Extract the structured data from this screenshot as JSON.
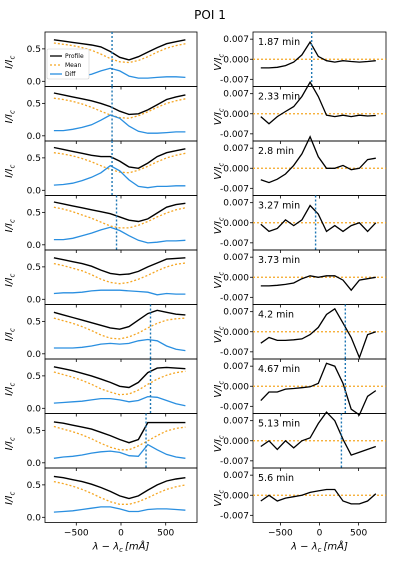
{
  "title": "POI 1",
  "colors": {
    "profile": "#000000",
    "mean": "#f5a623",
    "diff": "#2a8fe0",
    "vline": "#1f77b4"
  },
  "chart_data": [
    {
      "type": "line",
      "column": "left",
      "ylabel": "I/I_c",
      "ylabel_main": "I/I",
      "ylabel_sub": "c",
      "xlabel": "λ − λ_c [mÅ]",
      "xlabel_main": "λ − λ",
      "xlabel_sub": "c",
      "xlabel_unit": "[mÅ]",
      "xlim": [
        -850,
        850
      ],
      "ylim": [
        -0.08,
        0.76
      ],
      "xticks": [
        -500,
        0,
        500
      ],
      "xtick_labels": [
        "−500",
        "0",
        "500"
      ],
      "yticks": [
        0.0,
        0.5
      ],
      "ytick_labels": [
        "0.0",
        "0.5"
      ],
      "legend": {
        "placement": "upper-left (first panel)",
        "entries": [
          "Profile",
          "Mean",
          "Diff"
        ]
      },
      "x": [
        -750,
        -645,
        -540,
        -435,
        -330,
        -225,
        -120,
        -15,
        90,
        195,
        300,
        405,
        510,
        615,
        720
      ],
      "panels": [
        {
          "vline": -100,
          "profile": [
            0.64,
            0.62,
            0.6,
            0.58,
            0.56,
            0.53,
            0.46,
            0.37,
            0.33,
            0.38,
            0.45,
            0.52,
            0.58,
            0.61,
            0.64
          ],
          "mean": [
            0.59,
            0.57,
            0.55,
            0.52,
            0.48,
            0.42,
            0.35,
            0.3,
            0.29,
            0.32,
            0.38,
            0.45,
            0.51,
            0.55,
            0.58
          ],
          "diff": [
            0.05,
            0.05,
            0.06,
            0.08,
            0.11,
            0.16,
            0.2,
            0.16,
            0.08,
            0.05,
            0.05,
            0.06,
            0.07,
            0.07,
            0.06
          ]
        },
        {
          "vline": -100,
          "profile": [
            0.66,
            0.63,
            0.6,
            0.57,
            0.54,
            0.5,
            0.45,
            0.38,
            0.33,
            0.34,
            0.4,
            0.48,
            0.56,
            0.6,
            0.63
          ],
          "mean": [
            0.58,
            0.56,
            0.53,
            0.49,
            0.44,
            0.38,
            0.32,
            0.28,
            0.27,
            0.31,
            0.37,
            0.44,
            0.5,
            0.54,
            0.57
          ],
          "diff": [
            0.08,
            0.08,
            0.1,
            0.13,
            0.17,
            0.24,
            0.32,
            0.27,
            0.15,
            0.07,
            0.04,
            0.04,
            0.05,
            0.06,
            0.06
          ]
        },
        {
          "vline": -100,
          "profile": [
            0.66,
            0.63,
            0.6,
            0.57,
            0.54,
            0.52,
            0.52,
            0.45,
            0.36,
            0.34,
            0.42,
            0.52,
            0.58,
            0.61,
            0.64
          ],
          "mean": [
            0.58,
            0.56,
            0.53,
            0.49,
            0.44,
            0.38,
            0.32,
            0.28,
            0.27,
            0.31,
            0.37,
            0.44,
            0.5,
            0.54,
            0.57
          ],
          "diff": [
            0.08,
            0.09,
            0.11,
            0.15,
            0.2,
            0.27,
            0.38,
            0.3,
            0.16,
            0.06,
            0.04,
            0.06,
            0.06,
            0.07,
            0.07
          ]
        },
        {
          "vline": -50,
          "profile": [
            0.66,
            0.63,
            0.6,
            0.57,
            0.54,
            0.51,
            0.48,
            0.43,
            0.38,
            0.36,
            0.4,
            0.49,
            0.58,
            0.62,
            0.64
          ],
          "mean": [
            0.58,
            0.55,
            0.51,
            0.46,
            0.41,
            0.35,
            0.29,
            0.26,
            0.26,
            0.3,
            0.36,
            0.43,
            0.49,
            0.54,
            0.57
          ],
          "diff": [
            0.08,
            0.08,
            0.1,
            0.14,
            0.18,
            0.23,
            0.27,
            0.22,
            0.14,
            0.07,
            0.03,
            0.04,
            0.06,
            0.06,
            0.07
          ]
        },
        {
          "vline": null,
          "profile": [
            0.64,
            0.61,
            0.58,
            0.55,
            0.51,
            0.45,
            0.4,
            0.38,
            0.39,
            0.43,
            0.5,
            0.56,
            0.62,
            0.63,
            0.64
          ],
          "mean": [
            0.55,
            0.52,
            0.48,
            0.44,
            0.38,
            0.31,
            0.26,
            0.24,
            0.26,
            0.31,
            0.37,
            0.44,
            0.5,
            0.54,
            0.56
          ],
          "diff": [
            0.09,
            0.1,
            0.1,
            0.11,
            0.13,
            0.14,
            0.14,
            0.14,
            0.13,
            0.12,
            0.11,
            0.07,
            0.09,
            0.08,
            0.08
          ]
        },
        {
          "vline": 330,
          "profile": [
            0.64,
            0.6,
            0.56,
            0.52,
            0.48,
            0.44,
            0.4,
            0.38,
            0.42,
            0.52,
            0.62,
            0.67,
            0.64,
            0.61,
            0.6
          ],
          "mean": [
            0.55,
            0.51,
            0.47,
            0.42,
            0.36,
            0.29,
            0.24,
            0.23,
            0.26,
            0.32,
            0.4,
            0.47,
            0.52,
            0.54,
            0.55
          ],
          "diff": [
            0.09,
            0.09,
            0.09,
            0.1,
            0.12,
            0.15,
            0.16,
            0.15,
            0.16,
            0.2,
            0.22,
            0.2,
            0.12,
            0.07,
            0.05
          ]
        },
        {
          "vline": 330,
          "profile": [
            0.64,
            0.61,
            0.58,
            0.54,
            0.5,
            0.45,
            0.4,
            0.34,
            0.32,
            0.4,
            0.55,
            0.62,
            0.63,
            0.62,
            0.61
          ],
          "mean": [
            0.56,
            0.52,
            0.48,
            0.43,
            0.37,
            0.3,
            0.25,
            0.21,
            0.22,
            0.28,
            0.37,
            0.45,
            0.51,
            0.55,
            0.57
          ],
          "diff": [
            0.08,
            0.09,
            0.1,
            0.11,
            0.13,
            0.15,
            0.15,
            0.13,
            0.1,
            0.12,
            0.18,
            0.17,
            0.12,
            0.07,
            0.04
          ]
        },
        {
          "vline": 280,
          "profile": [
            0.63,
            0.61,
            0.58,
            0.55,
            0.52,
            0.47,
            0.42,
            0.36,
            0.31,
            0.36,
            0.62,
            0.62,
            0.62,
            0.62,
            0.62
          ],
          "mean": [
            0.56,
            0.52,
            0.48,
            0.43,
            0.37,
            0.3,
            0.24,
            0.2,
            0.2,
            0.26,
            0.34,
            0.42,
            0.49,
            0.53,
            0.55
          ],
          "diff": [
            0.07,
            0.09,
            0.1,
            0.12,
            0.15,
            0.17,
            0.18,
            0.16,
            0.11,
            0.1,
            0.28,
            0.2,
            0.13,
            0.09,
            0.07
          ]
        },
        {
          "vline": null,
          "profile": [
            0.63,
            0.61,
            0.58,
            0.55,
            0.51,
            0.46,
            0.4,
            0.33,
            0.29,
            0.33,
            0.42,
            0.5,
            0.56,
            0.59,
            0.61
          ],
          "mean": [
            0.55,
            0.52,
            0.48,
            0.43,
            0.37,
            0.3,
            0.24,
            0.2,
            0.2,
            0.24,
            0.3,
            0.37,
            0.43,
            0.47,
            0.5
          ],
          "diff": [
            0.08,
            0.09,
            0.1,
            0.12,
            0.14,
            0.16,
            0.16,
            0.13,
            0.09,
            0.09,
            0.12,
            0.13,
            0.13,
            0.12,
            0.11
          ]
        }
      ]
    },
    {
      "type": "line",
      "column": "right",
      "ylabel": "V/I_c",
      "ylabel_main": "V/I",
      "ylabel_sub": "c",
      "xlabel": "λ − λ_c [mÅ]",
      "xlabel_main": "λ − λ",
      "xlabel_sub": "c",
      "xlabel_unit": "[mÅ]",
      "xlim": [
        -850,
        850
      ],
      "ylim": [
        -0.0095,
        0.0095
      ],
      "xticks": [
        -500,
        0,
        500
      ],
      "xtick_labels": [
        "−500",
        "0",
        "500"
      ],
      "yticks": [
        0.007,
        0.0,
        -0.007
      ],
      "ytick_labels": [
        "0.007",
        "0.000",
        "-0.007"
      ],
      "x": [
        -750,
        -645,
        -540,
        -435,
        -330,
        -225,
        -120,
        -15,
        90,
        195,
        300,
        405,
        510,
        615,
        720
      ],
      "panels": [
        {
          "time": "1.87 min",
          "vline": -100,
          "v": [
            -0.003,
            -0.003,
            -0.0028,
            -0.0022,
            -0.001,
            0.0015,
            0.006,
            0.001,
            -0.0005,
            -0.001,
            -0.0005,
            -0.0008,
            -0.001,
            -0.0008,
            -0.0005
          ]
        },
        {
          "time": "2.33 min",
          "vline": null,
          "v": [
            -0.001,
            -0.0035,
            -0.001,
            0.0008,
            0.0025,
            0.006,
            0.011,
            0.006,
            -0.0005,
            -0.001,
            -0.0005,
            -0.001,
            -0.0005,
            -0.0008,
            -0.0006
          ]
        },
        {
          "time": "2.8 min",
          "vline": null,
          "v": [
            -0.004,
            -0.005,
            -0.0038,
            -0.002,
            0.001,
            0.005,
            0.011,
            0.004,
            0.0,
            0.0,
            0.001,
            -0.0005,
            0.0,
            0.003,
            0.0035
          ]
        },
        {
          "time": "3.27 min",
          "vline": -50,
          "v": [
            -0.0005,
            -0.003,
            -0.002,
            0.001,
            -0.001,
            0.001,
            0.006,
            0.003,
            -0.003,
            -0.001,
            -0.003,
            -0.001,
            0.0,
            -0.003,
            0.0
          ]
        },
        {
          "time": "3.73 min",
          "vline": null,
          "v": [
            -0.003,
            -0.003,
            -0.0028,
            -0.0025,
            -0.002,
            -0.0005,
            0.0005,
            0.0,
            0.0005,
            0.0005,
            -0.001,
            -0.0045,
            -0.001,
            -0.0005,
            0.0
          ]
        },
        {
          "time": "4.2 min",
          "vline": 330,
          "v": [
            -0.004,
            -0.002,
            -0.003,
            -0.003,
            -0.0028,
            -0.0025,
            -0.001,
            0.0015,
            0.006,
            0.008,
            0.003,
            -0.002,
            -0.009,
            -0.001,
            0.0
          ]
        },
        {
          "time": "4.67 min",
          "vline": 330,
          "v": [
            -0.005,
            -0.002,
            -0.002,
            -0.001,
            -0.0008,
            -0.0005,
            -0.0002,
            0.001,
            0.008,
            0.007,
            0.001,
            -0.008,
            -0.01,
            -0.0035,
            -0.0015
          ]
        },
        {
          "time": "5.13 min",
          "vline": 280,
          "v": [
            -0.002,
            0.0,
            -0.003,
            0.0,
            -0.0025,
            0.0,
            0.001,
            0.006,
            0.01,
            0.007,
            0.0005,
            -0.005,
            -0.004,
            -0.003,
            -0.002
          ]
        },
        {
          "time": "5.6 min",
          "vline": null,
          "v": [
            -0.002,
            0.0,
            -0.002,
            -0.001,
            -0.0005,
            0.0,
            0.001,
            0.0015,
            0.002,
            0.002,
            -0.002,
            -0.003,
            -0.003,
            -0.002,
            0.0005
          ]
        }
      ]
    }
  ]
}
